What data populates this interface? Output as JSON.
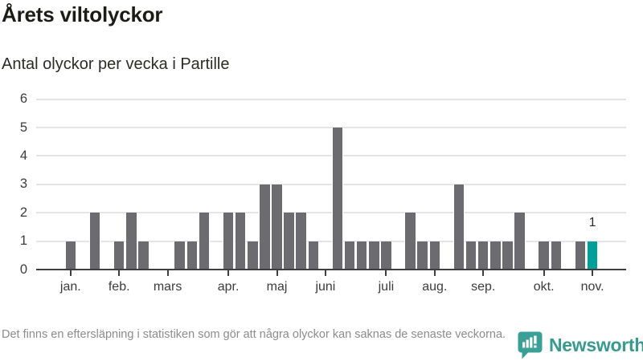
{
  "header": {
    "title": "Årets viltolyckor",
    "subtitle": "Antal olyckor per vecka i Partille"
  },
  "chart_data": {
    "type": "bar",
    "title": "Årets viltolyckor",
    "subtitle": "Antal olyckor per vecka i Partille",
    "x_unit": "vecka",
    "num_weeks": 44,
    "values": [
      1,
      0,
      2,
      0,
      1,
      2,
      1,
      0,
      0,
      1,
      1,
      2,
      0,
      2,
      2,
      1,
      3,
      3,
      2,
      2,
      1,
      0,
      5,
      1,
      1,
      1,
      1,
      0,
      2,
      1,
      1,
      0,
      3,
      1,
      1,
      1,
      1,
      2,
      0,
      1,
      1,
      0,
      1,
      1
    ],
    "y_ticks": [
      0,
      1,
      2,
      3,
      4,
      5,
      6
    ],
    "ylim": [
      0,
      6
    ],
    "grid": "horizontal",
    "month_ticks": [
      {
        "label": "jan.",
        "week": 1
      },
      {
        "label": "feb.",
        "week": 5
      },
      {
        "label": "mars",
        "week": 9
      },
      {
        "label": "apr.",
        "week": 14
      },
      {
        "label": "maj",
        "week": 18
      },
      {
        "label": "juni",
        "week": 22
      },
      {
        "label": "juli",
        "week": 27
      },
      {
        "label": "aug.",
        "week": 31
      },
      {
        "label": "sep.",
        "week": 35
      },
      {
        "label": "okt.",
        "week": 40
      },
      {
        "label": "nov.",
        "week": 44
      }
    ],
    "highlight_week": 44,
    "annotation": {
      "text": "1",
      "week": 44
    },
    "colors": {
      "bar": "#6b6b70",
      "highlight": "#00a09a",
      "gridline": "#e4e4e4",
      "axis": "#3f3f3f"
    }
  },
  "footer": {
    "note": "Det finns en eftersläpning i statistiken som gör att några olyckor kan saknas de senaste veckorna.",
    "logo": {
      "text": "Newsworthy",
      "color": "#38998f",
      "icon": "newsworthy-chart-bubble-icon"
    }
  }
}
